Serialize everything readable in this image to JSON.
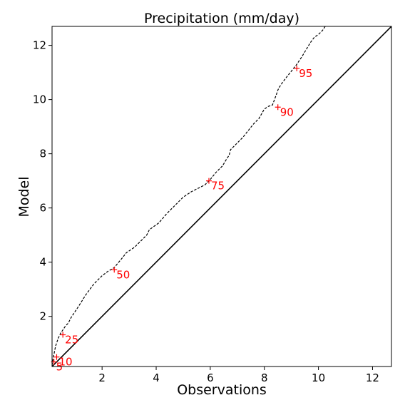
{
  "chart_data": {
    "type": "line",
    "title": "Precipitation (mm/day)",
    "xlabel": "Observations",
    "ylabel": "Model",
    "xlim": [
      0.15,
      12.7
    ],
    "ylim": [
      0.15,
      12.7
    ],
    "xticks": [
      2,
      4,
      6,
      8,
      10,
      12
    ],
    "yticks": [
      2,
      4,
      6,
      8,
      10,
      12
    ],
    "grid": false,
    "colors": {
      "quantile_line": "#000000",
      "reference_line": "#000000",
      "percentile_marker": "#ff0000"
    },
    "series": [
      {
        "style": "dashed",
        "x": [
          0.15,
          0.2,
          0.28,
          0.38,
          0.48,
          0.55,
          0.65,
          0.75,
          0.85,
          0.95,
          1.15,
          1.4,
          1.7,
          2.0,
          2.2,
          2.45,
          2.7,
          2.9,
          3.2,
          3.5,
          3.65,
          3.75,
          4.1,
          4.4,
          4.8,
          5.0,
          5.3,
          5.6,
          5.8,
          6.0,
          6.2,
          6.45,
          6.6,
          6.7,
          6.75,
          6.9,
          7.2,
          7.4,
          7.6,
          7.8,
          8.0,
          8.15,
          8.3,
          8.45,
          8.5,
          8.55,
          8.65,
          8.8,
          9.0,
          9.2,
          9.4,
          9.55,
          9.7,
          9.85,
          10.0,
          10.15,
          10.25
        ],
        "y": [
          0.2,
          0.5,
          0.9,
          1.2,
          1.4,
          1.5,
          1.65,
          1.75,
          1.95,
          2.1,
          2.4,
          2.8,
          3.2,
          3.5,
          3.65,
          3.8,
          4.1,
          4.35,
          4.55,
          4.85,
          5.0,
          5.2,
          5.45,
          5.8,
          6.2,
          6.4,
          6.6,
          6.75,
          6.85,
          7.05,
          7.3,
          7.55,
          7.8,
          7.95,
          8.15,
          8.3,
          8.6,
          8.85,
          9.1,
          9.3,
          9.65,
          9.75,
          9.8,
          10.2,
          10.35,
          10.45,
          10.6,
          10.8,
          11.05,
          11.3,
          11.6,
          11.85,
          12.1,
          12.3,
          12.4,
          12.55,
          12.7
        ]
      },
      {
        "style": "solid",
        "x": [
          0.15,
          12.7
        ],
        "y": [
          0.15,
          12.7
        ]
      }
    ],
    "percentiles": [
      {
        "label": "5",
        "x": 0.22,
        "y": 0.32
      },
      {
        "label": "10",
        "x": 0.32,
        "y": 0.5
      },
      {
        "label": "25",
        "x": 0.55,
        "y": 1.32
      },
      {
        "label": "50",
        "x": 2.45,
        "y": 3.72
      },
      {
        "label": "75",
        "x": 5.95,
        "y": 7.0
      },
      {
        "label": "90",
        "x": 8.5,
        "y": 9.72
      },
      {
        "label": "95",
        "x": 9.2,
        "y": 11.15
      }
    ]
  }
}
